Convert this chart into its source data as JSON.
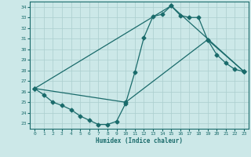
{
  "title": "",
  "xlabel": "Humidex (Indice chaleur)",
  "background_color": "#cce8e8",
  "grid_color": "#aacece",
  "line_color": "#1a6b6b",
  "xlim": [
    -0.5,
    23.5
  ],
  "ylim": [
    22.5,
    34.5
  ],
  "xticks": [
    0,
    1,
    2,
    3,
    4,
    5,
    6,
    7,
    8,
    9,
    10,
    11,
    12,
    13,
    14,
    15,
    16,
    17,
    18,
    19,
    20,
    21,
    22,
    23
  ],
  "yticks": [
    23,
    24,
    25,
    26,
    27,
    28,
    29,
    30,
    31,
    32,
    33,
    34
  ],
  "line1_x": [
    0,
    1,
    2,
    3,
    4,
    5,
    6,
    7,
    8,
    9,
    10,
    11,
    12,
    13,
    14,
    15,
    16,
    17,
    18,
    19,
    20,
    21,
    22,
    23
  ],
  "line1_y": [
    26.3,
    25.7,
    25.0,
    24.7,
    24.3,
    23.7,
    23.3,
    22.9,
    22.9,
    23.2,
    24.9,
    27.8,
    31.1,
    33.1,
    33.3,
    34.1,
    33.2,
    33.0,
    33.0,
    30.9,
    29.5,
    28.7,
    28.1,
    27.9
  ],
  "line2_x": [
    0,
    15,
    23
  ],
  "line2_y": [
    26.3,
    34.1,
    27.9
  ],
  "line3_x": [
    0,
    10,
    19,
    23
  ],
  "line3_y": [
    26.3,
    25.0,
    30.9,
    27.9
  ],
  "marker_size": 2.5,
  "linewidth": 0.9
}
